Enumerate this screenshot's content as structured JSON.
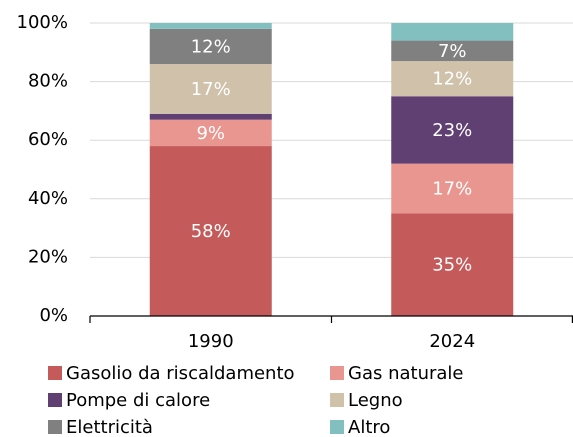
{
  "chart_data": {
    "type": "stacked_bar",
    "categories": [
      "1990",
      "2024"
    ],
    "series": [
      {
        "name": "Gasolio da riscaldamento",
        "color": "#c45b5a",
        "values": [
          58,
          35
        ],
        "value_labels": [
          "58%",
          "35%"
        ]
      },
      {
        "name": "Gas naturale",
        "color": "#e8968f",
        "values": [
          9,
          17
        ],
        "value_labels": [
          "9%",
          "17%"
        ]
      },
      {
        "name": "Pompe di calore",
        "color": "#603f73",
        "values": [
          2,
          23
        ],
        "value_labels": [
          null,
          "23%"
        ]
      },
      {
        "name": "Legno",
        "color": "#d0c1aa",
        "values": [
          17,
          12
        ],
        "value_labels": [
          "17%",
          "12%"
        ]
      },
      {
        "name": "Elettricità",
        "color": "#808080",
        "values": [
          12,
          7
        ],
        "value_labels": [
          "12%",
          "7%"
        ]
      },
      {
        "name": "Altro",
        "color": "#82c0bf",
        "values": [
          2,
          6
        ],
        "value_labels": [
          null,
          null
        ]
      }
    ],
    "ylim": [
      0,
      100
    ],
    "yticks": [
      {
        "value": 0,
        "label": "0%"
      },
      {
        "value": 20,
        "label": "20%"
      },
      {
        "value": 40,
        "label": "40%"
      },
      {
        "value": 60,
        "label": "60%"
      },
      {
        "value": 80,
        "label": "80%"
      },
      {
        "value": 100,
        "label": "100%"
      }
    ],
    "grid": true,
    "legend": "bottom"
  }
}
